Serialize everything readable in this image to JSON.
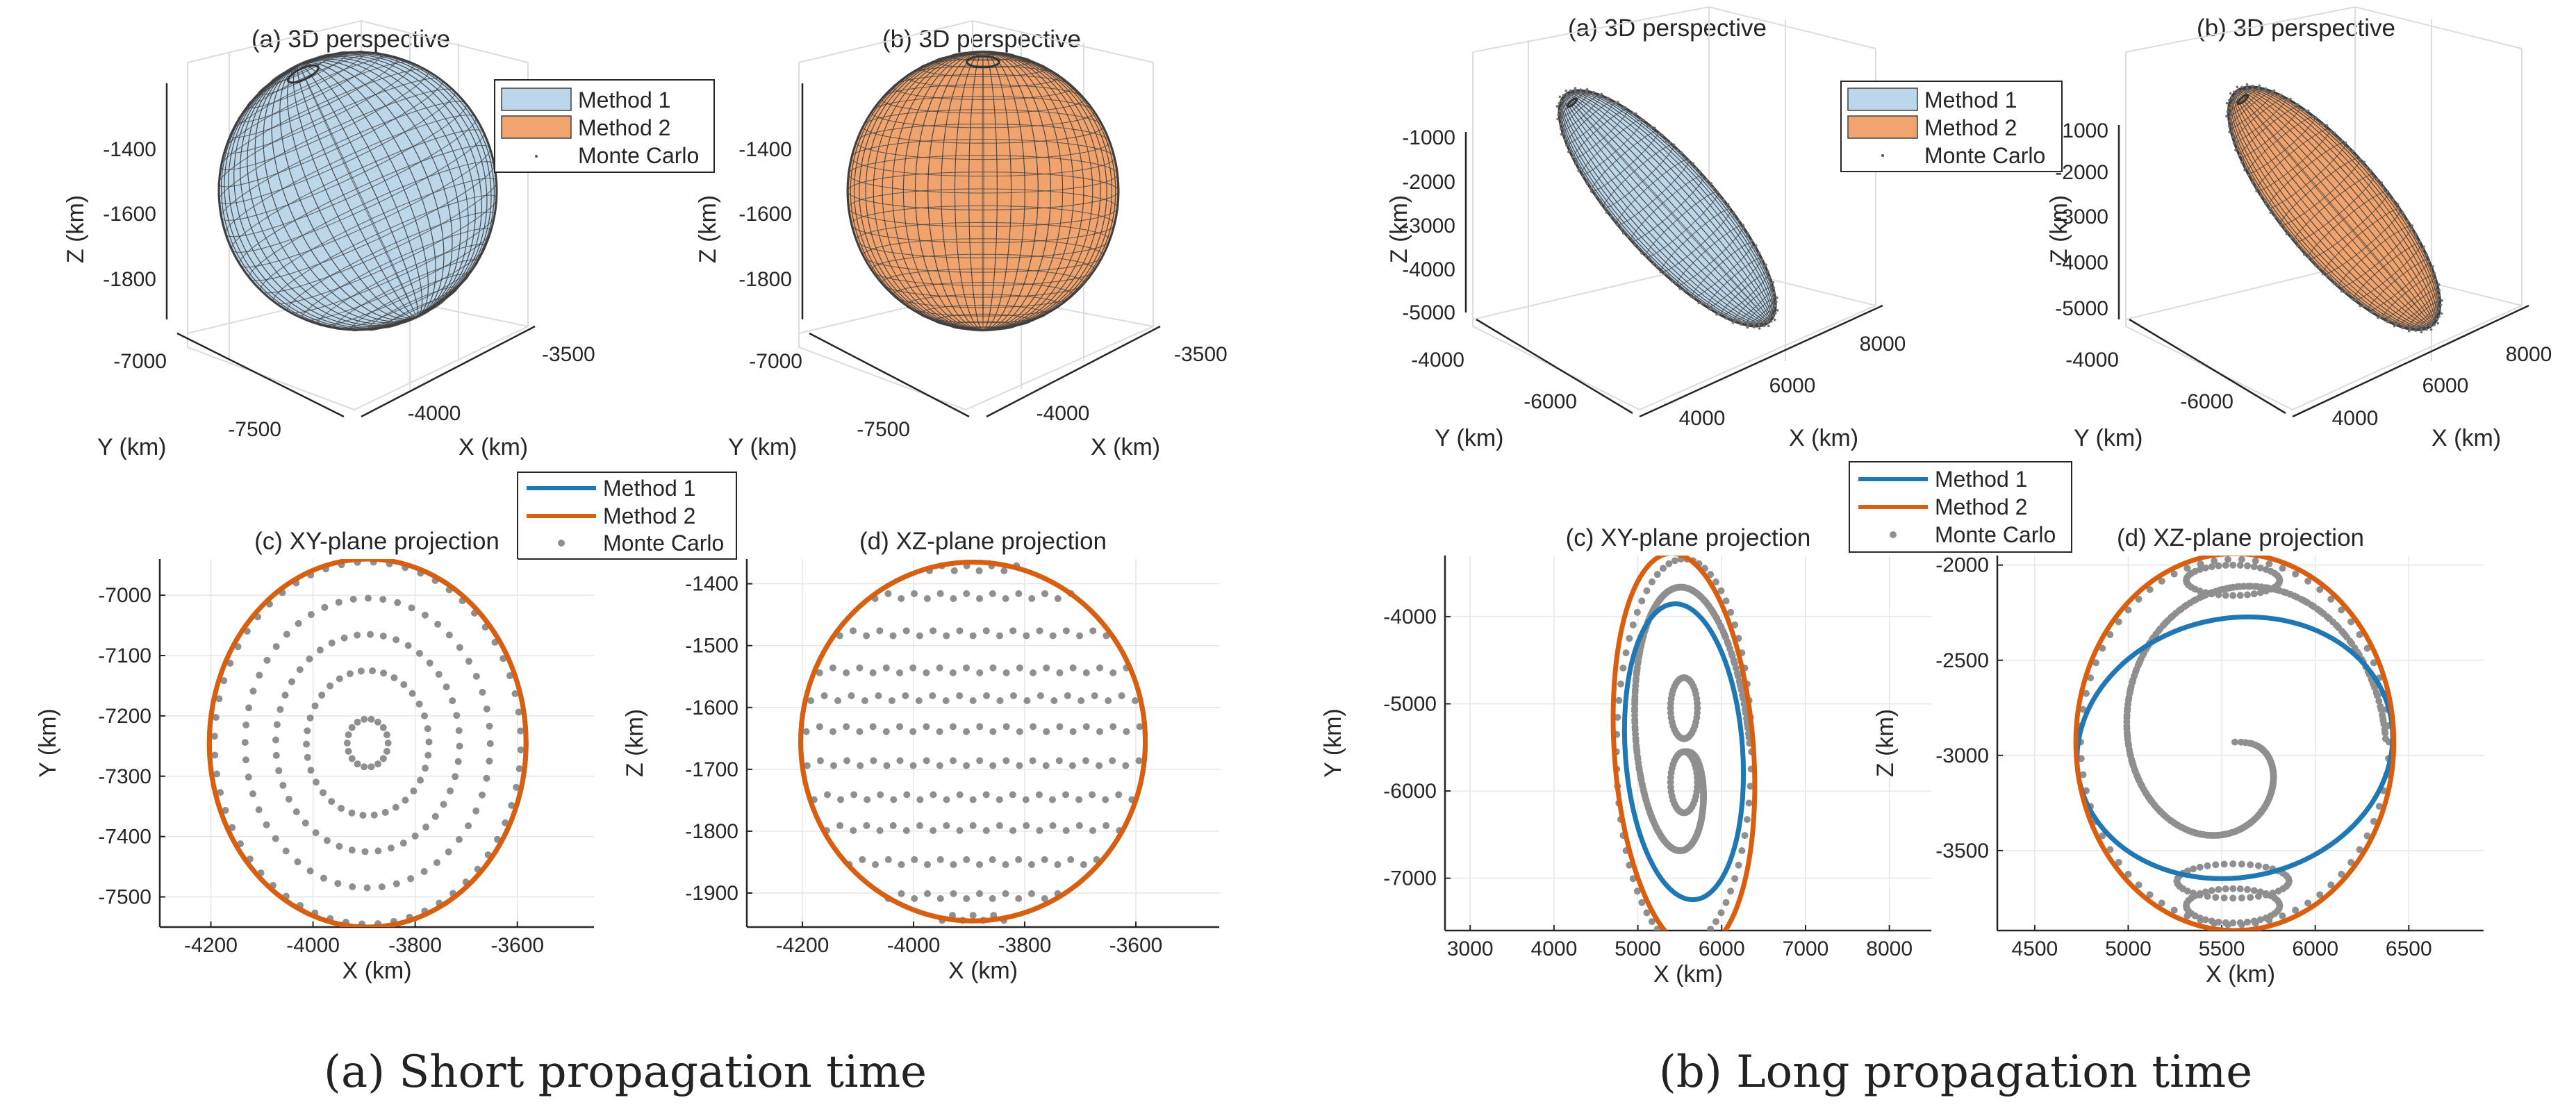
{
  "captions": [
    {
      "label": "(a) Short propagation time"
    },
    {
      "label": "(b) Long propagation time"
    }
  ],
  "legend": {
    "entries": [
      "Method 1",
      "Method 2",
      "Monte Carlo"
    ],
    "colors": {
      "method1_fill": "#bcd6ea",
      "method2_fill": "#f0a36c",
      "method1_line": "#1f77b4",
      "method2_line": "#d95f0e",
      "monte_carlo": "#8f8f8f",
      "mesh_edge": "#404040"
    }
  },
  "chart_data": [
    {
      "type": "scatter",
      "panel": "short-3d-a",
      "title": "(a) 3D perspective",
      "xlabel": "X (km)",
      "ylabel": "Y (km)",
      "zlabel": "Z (km)",
      "x_ticks": [
        "-4000",
        "-3500"
      ],
      "y_ticks": [
        "-7000",
        "-7500"
      ],
      "z_ticks": [
        "-1400",
        "-1600",
        "-1800"
      ],
      "zlim": [
        -1950,
        -1350
      ],
      "surface": "Method 1",
      "series": [
        {
          "name": "Method 1"
        },
        {
          "name": "Method 2"
        },
        {
          "name": "Monte Carlo"
        }
      ]
    },
    {
      "type": "scatter",
      "panel": "short-3d-b",
      "title": "(b) 3D perspective",
      "xlabel": "X (km)",
      "ylabel": "Y (km)",
      "zlabel": "Z (km)",
      "x_ticks": [
        "-4000",
        "-3500"
      ],
      "y_ticks": [
        "-7000",
        "-7500"
      ],
      "z_ticks": [
        "-1400",
        "-1600",
        "-1800"
      ],
      "zlim": [
        -1950,
        -1350
      ],
      "surface": "Method 2"
    },
    {
      "type": "scatter",
      "panel": "short-xy-c",
      "title": "(c) XY-plane projection",
      "xlabel": "X (km)",
      "ylabel": "Y (km)",
      "xlim": [
        -4300,
        -3450
      ],
      "ylim": [
        -7550,
        -6940
      ],
      "x_ticks": [
        -4200,
        -4000,
        -3800,
        -3600
      ],
      "y_ticks": [
        -7000,
        -7100,
        -7200,
        -7300,
        -7400,
        -7500
      ],
      "grid": true,
      "ellipses": [
        {
          "name": "Method 1",
          "center": [
            -3893,
            -7245
          ],
          "semi_axes": [
            310,
            305
          ],
          "rotation_deg": 0
        },
        {
          "name": "Method 2",
          "center": [
            -3893,
            -7245
          ],
          "semi_axes": [
            310,
            305
          ],
          "rotation_deg": 0
        }
      ],
      "monte_carlo": {
        "pattern": "concentric-rings",
        "center": [
          -3893,
          -7245
        ],
        "rings": [
          40,
          120,
          180,
          240,
          300
        ],
        "points_per_ring": [
          18,
          34,
          44,
          52,
          60
        ]
      }
    },
    {
      "type": "scatter",
      "panel": "short-xz-d",
      "title": "(d) XZ-plane projection",
      "xlabel": "X (km)",
      "ylabel": "Z (km)",
      "xlim": [
        -4300,
        -3450
      ],
      "ylim": [
        -1955,
        -1360
      ],
      "x_ticks": [
        -4200,
        -4000,
        -3800,
        -3600
      ],
      "y_ticks": [
        -1400,
        -1500,
        -1600,
        -1700,
        -1800,
        -1900
      ],
      "grid": true,
      "ellipses": [
        {
          "name": "Method 1",
          "center": [
            -3893,
            -1655
          ],
          "semi_axes": [
            310,
            290
          ],
          "rotation_deg": 0
        },
        {
          "name": "Method 2",
          "center": [
            -3893,
            -1655
          ],
          "semi_axes": [
            310,
            290
          ],
          "rotation_deg": 0
        }
      ],
      "monte_carlo": {
        "pattern": "horizontal-bands",
        "z_levels": [
          -1375,
          -1420,
          -1480,
          -1540,
          -1585,
          -1635,
          -1690,
          -1745,
          -1795,
          -1850,
          -1905,
          -1940
        ]
      }
    },
    {
      "type": "scatter",
      "panel": "long-3d-a",
      "title": "(a) 3D perspective",
      "xlabel": "X (km)",
      "ylabel": "Y (km)",
      "zlabel": "Z (km)",
      "x_ticks": [
        "4000",
        "6000",
        "8000"
      ],
      "y_ticks": [
        "-4000",
        "-6000"
      ],
      "z_ticks": [
        "-1000",
        "-2000",
        "-3000",
        "-4000",
        "-5000"
      ],
      "zlim": [
        -5500,
        -500
      ],
      "surface": "Method 1"
    },
    {
      "type": "scatter",
      "panel": "long-3d-b",
      "title": "(b) 3D perspective",
      "xlabel": "X (km)",
      "ylabel": "Y (km)",
      "zlabel": "Z (km)",
      "x_ticks": [
        "4000",
        "6000",
        "8000"
      ],
      "y_ticks": [
        "-4000",
        "-6000"
      ],
      "z_ticks": [
        "-1000",
        "-2000",
        "-3000",
        "-4000",
        "-5000"
      ],
      "zlim": [
        -5500,
        -500
      ],
      "surface": "Method 2"
    },
    {
      "type": "scatter",
      "panel": "long-xy-c",
      "title": "(c) XY-plane projection",
      "xlabel": "X (km)",
      "ylabel": "Y (km)",
      "xlim": [
        2700,
        8500
      ],
      "ylim": [
        -7600,
        -3300
      ],
      "x_ticks": [
        3000,
        4000,
        5000,
        6000,
        7000,
        8000
      ],
      "y_ticks": [
        -4000,
        -5000,
        -6000,
        -7000
      ],
      "grid": true,
      "ellipses": [
        {
          "name": "Method 1",
          "center": [
            5550,
            -5550
          ],
          "semi_axes": [
            700,
            1700
          ],
          "rotation_deg": 4
        },
        {
          "name": "Method 2",
          "center": [
            5550,
            -5550
          ],
          "semi_axes": [
            830,
            2280
          ],
          "rotation_deg": 4
        }
      ],
      "monte_carlo": {
        "pattern": "loops",
        "center": [
          5550,
          -5550
        ],
        "inner_loops": [
          [
            5550,
            -5050,
            160,
            350
          ],
          [
            5550,
            -5900,
            160,
            350
          ]
        ]
      }
    },
    {
      "type": "scatter",
      "panel": "long-xz-d",
      "title": "(d) XZ-plane projection",
      "xlabel": "X (km)",
      "ylabel": "Z (km)",
      "xlim": [
        4300,
        6900
      ],
      "ylim": [
        -3920,
        -1950
      ],
      "x_ticks": [
        4500,
        5000,
        5500,
        6000,
        6500
      ],
      "y_ticks": [
        -2000,
        -2500,
        -3000,
        -3500
      ],
      "grid": true,
      "ellipses": [
        {
          "name": "Method 1",
          "center": [
            5570,
            -2960
          ],
          "semi_axes": [
            850,
            680
          ],
          "rotation_deg": 12
        },
        {
          "name": "Method 2",
          "center": [
            5570,
            -2930
          ],
          "semi_axes": [
            850,
            990
          ],
          "rotation_deg": 0
        }
      ],
      "monte_carlo": {
        "pattern": "loops",
        "inner_loops": [
          [
            5560,
            -2080,
            250,
            80
          ],
          [
            5560,
            -3660,
            300,
            90
          ],
          [
            5560,
            -3790,
            250,
            90
          ]
        ]
      }
    }
  ]
}
